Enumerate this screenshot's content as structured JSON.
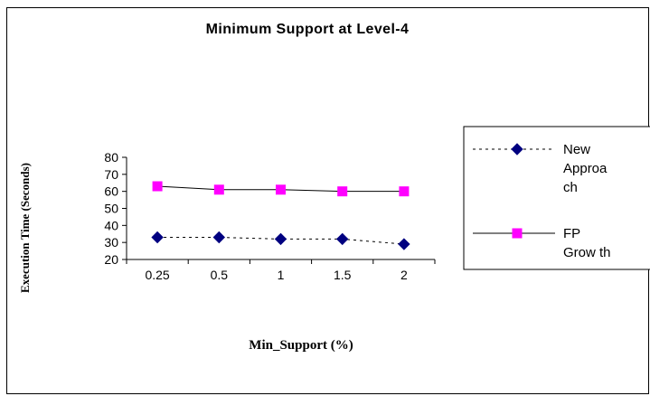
{
  "chart_data": {
    "type": "line",
    "title": "Minimum Support at Level-4",
    "xlabel": "Min_Support (%)",
    "ylabel": "Execution Time (Seconds)",
    "categories": [
      "0.25",
      "0.5",
      "1",
      "1.5",
      "2"
    ],
    "ylim": [
      20,
      80
    ],
    "yticks": [
      20,
      30,
      40,
      50,
      60,
      70,
      80
    ],
    "grid": false,
    "legend_position": "right",
    "series": [
      {
        "name": "New Approach",
        "legend_lines": [
          "New",
          "Approa",
          "ch"
        ],
        "values": [
          33,
          33,
          32,
          32,
          29
        ],
        "color": "#000080",
        "line_style": "dashed",
        "marker": "diamond"
      },
      {
        "name": "FP Growth",
        "legend_lines": [
          "FP",
          "Grow th"
        ],
        "values": [
          63,
          61,
          61,
          60,
          60
        ],
        "color": "#ff00ff",
        "line_style": "solid",
        "marker": "square"
      }
    ]
  }
}
